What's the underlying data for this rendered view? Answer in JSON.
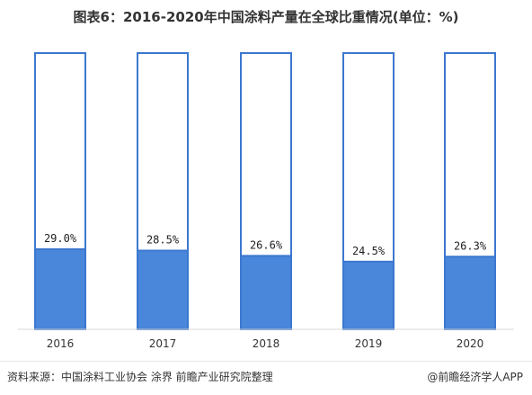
{
  "chart_data": {
    "type": "bar",
    "title": "图表6：2016-2020年中国涂料产量在全球比重情况(单位：%)",
    "categories": [
      "2016",
      "2017",
      "2018",
      "2019",
      "2020"
    ],
    "values": [
      29.0,
      28.5,
      26.6,
      24.5,
      26.3
    ],
    "value_labels": [
      "29.0%",
      "28.5%",
      "26.6%",
      "24.5%",
      "26.3%"
    ],
    "ylim": [
      0,
      100
    ],
    "grid": false,
    "legend": "none",
    "colors": {
      "fill": "#4a86d9",
      "border": "#3b78cf",
      "background": "#ffffff"
    }
  },
  "footer": {
    "source": "资料来源：中国涂料工业协会 涂界 前瞻产业研究院整理",
    "credit": "@前瞻经济学人APP"
  }
}
